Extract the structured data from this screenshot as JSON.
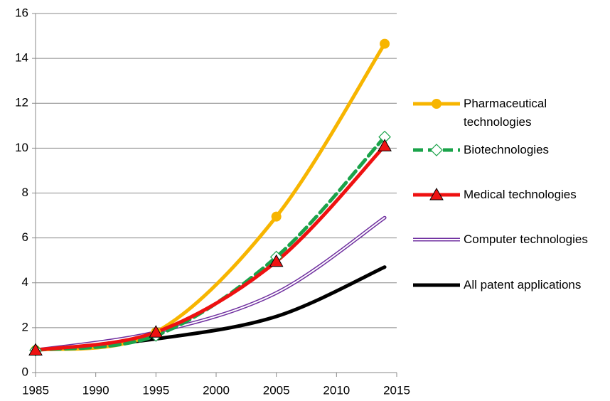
{
  "chart_data": {
    "type": "line",
    "x": [
      1985,
      1995,
      2005,
      2014
    ],
    "series": [
      {
        "name": "Pharmaceutical technologies",
        "color": "#f7b500",
        "marker": "circle",
        "dash": false,
        "double": false,
        "values": [
          1.0,
          1.8,
          6.95,
          14.65
        ]
      },
      {
        "name": "Biotechnologies",
        "color": "#1aa34a",
        "marker": "diamond",
        "dash": true,
        "double": false,
        "values": [
          1.0,
          1.65,
          5.15,
          10.5
        ]
      },
      {
        "name": "Medical technologies",
        "color": "#ee1111",
        "marker": "triangle",
        "dash": false,
        "double": false,
        "values": [
          1.0,
          1.8,
          4.95,
          10.1
        ]
      },
      {
        "name": "Computer technologies",
        "color": "#7030a0",
        "marker": "none",
        "dash": false,
        "double": true,
        "values": [
          1.0,
          1.8,
          3.55,
          6.9
        ]
      },
      {
        "name": "All patent applications",
        "color": "#000000",
        "marker": "none",
        "dash": false,
        "double": false,
        "values": [
          1.0,
          1.5,
          2.5,
          4.7
        ]
      }
    ],
    "xlim": [
      1985,
      2015
    ],
    "xticks": [
      1985,
      1990,
      1995,
      2000,
      2005,
      2010,
      2015
    ],
    "ylim": [
      0,
      16
    ],
    "yticks": [
      0,
      2,
      4,
      6,
      8,
      10,
      12,
      14,
      16
    ],
    "grid": true,
    "legend": "right"
  }
}
